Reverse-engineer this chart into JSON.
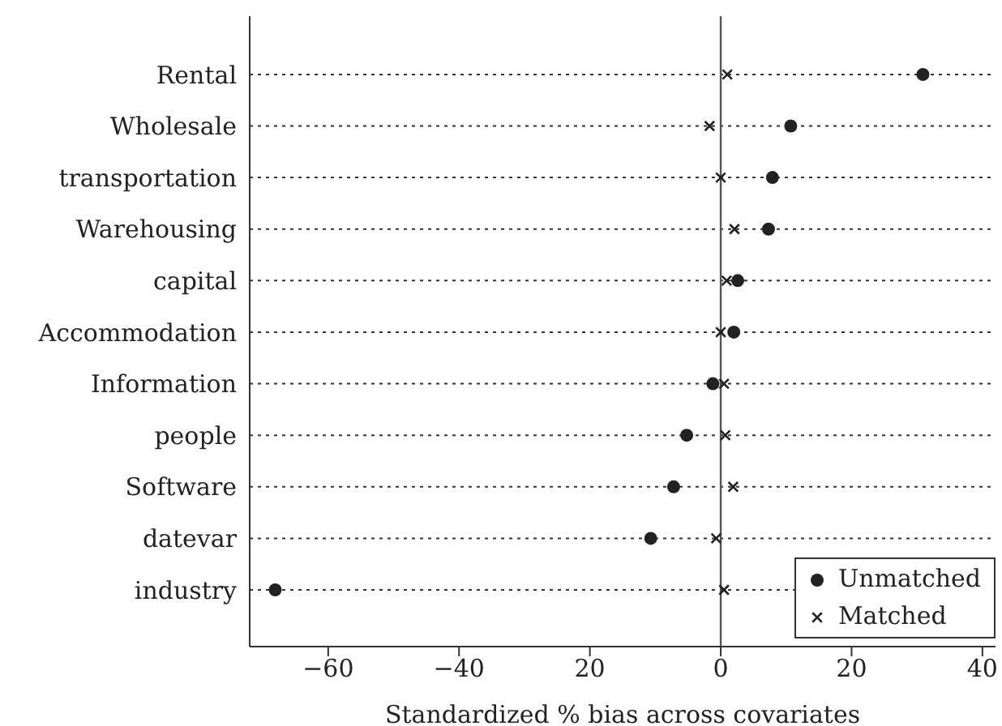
{
  "chart_data": {
    "type": "scatter",
    "xlabel": "Standardized % bias across covariates",
    "categories": [
      "Rental",
      "Wholesale",
      "transportation",
      "Warehousing",
      "capital",
      "Accommodation",
      "Information",
      "people",
      "Software",
      "datevar",
      "industry"
    ],
    "series": [
      {
        "name": "Unmatched",
        "color": "#222222",
        "marker": "circle",
        "values": [
          30.9,
          10.7,
          7.9,
          7.3,
          2.6,
          2.0,
          -1.2,
          -5.2,
          -7.2,
          -10.7,
          -68.1
        ]
      },
      {
        "name": "Matched",
        "color": "#222222",
        "marker": "cross",
        "values": [
          1.0,
          -1.7,
          0.0,
          2.1,
          0.9,
          0.0,
          0.5,
          0.7,
          1.9,
          -0.7,
          0.5
        ]
      }
    ],
    "orientation": "horizontal",
    "xlim": [
      -72,
      42
    ],
    "xticks": [
      -60,
      -40,
      {
        "value": -20,
        "label": "20"
      },
      0,
      20,
      40
    ],
    "ref_lines": [
      {
        "axis": "x",
        "value": 0,
        "color": "#555555"
      }
    ],
    "grid": "y",
    "legend": "bottom right"
  }
}
